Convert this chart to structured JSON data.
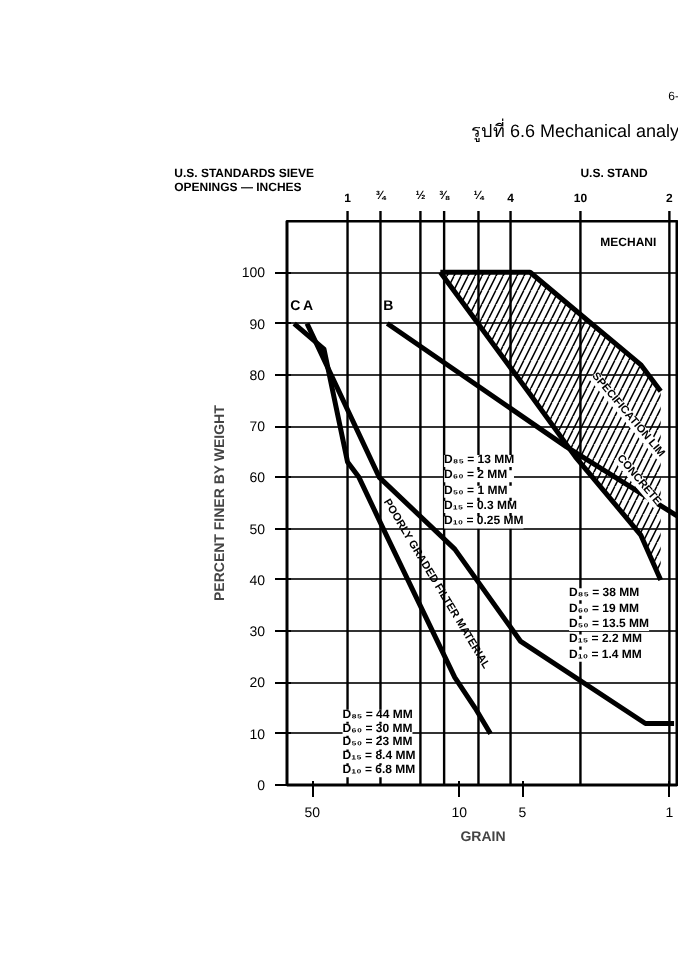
{
  "chart_data": {
    "type": "line",
    "title": "รูปที่ 6.6 Mechanical analy",
    "xlabel": "GRAIN",
    "ylabel": "PERCENT FINER BY WEIGHT",
    "log": "x",
    "xlim": [
      66,
      0.9
    ],
    "xticks": [
      50,
      10,
      5,
      1
    ],
    "ylim": [
      0,
      110
    ],
    "yticks": [
      0,
      10,
      20,
      30,
      40,
      50,
      60,
      70,
      80,
      90,
      100
    ],
    "grid": "y",
    "line_style": "solid",
    "ref_lines": [
      {
        "axis": "x",
        "value": 34
      },
      {
        "axis": "x",
        "value": 23.7
      },
      {
        "axis": "x",
        "value": 15.3
      },
      {
        "axis": "x",
        "value": 11.8
      },
      {
        "axis": "x",
        "value": 8.1
      },
      {
        "axis": "x",
        "value": 5.7
      },
      {
        "axis": "x",
        "value": 2.65
      },
      {
        "axis": "x",
        "value": 1.0
      }
    ],
    "series": [
      {
        "name": "C",
        "color": "#000000",
        "x": [
          61,
          44,
          34,
          30,
          23,
          10.5,
          8.4,
          7.1
        ],
        "values": [
          90,
          85,
          63,
          60,
          50,
          21,
          15,
          10
        ]
      },
      {
        "name": "A",
        "color": "#000000",
        "x": [
          53,
          24,
          10.5,
          5.1,
          1.3,
          0.95
        ],
        "values": [
          90,
          60,
          46,
          28,
          12,
          12
        ]
      },
      {
        "name": "B",
        "color": "#000000",
        "x": [
          22,
          3.1,
          0.92
        ],
        "values": [
          90,
          66,
          52.5
        ]
      },
      {
        "type": "line",
        "color": "#000000",
        "x": [
          12.3,
          4.6,
          2.8,
          1.37,
          1.1
        ],
        "values": [
          100,
          100,
          92.6,
          82,
          76.8
        ],
        "upper": [
          100,
          100,
          92.6,
          82,
          76.8
        ],
        "lower": [
          100,
          76.2,
          64,
          48.8,
          40
        ]
      },
      {
        "type": "line",
        "color": "#000000",
        "x": [
          12.3,
          4.6,
          2.8,
          1.37,
          1.1
        ],
        "values": [
          100,
          76.2,
          64,
          48.8,
          40
        ]
      }
    ],
    "annotations": [
      "6-",
      "U.S. STAND",
      "MECHANI",
      "SPECIFICATION LIM",
      "CONCRETE",
      "POORLY GRADED FILTER MATERIAL",
      "D₈₅ = 13 MM",
      "D₆₀ =   2 MM",
      "D₅₀ =   1 MM",
      "D₁₅ = 0.3 MM",
      "D₁₀ = 0.25 MM",
      "D₈₅ = 38 MM",
      "D₆₀ = 19 MM",
      "D₅₀ = 13.5 MM",
      "D₁₅ = 2.2 MM",
      "D₁₀ = 1.4 MM",
      "D₈₅ = 44 MM",
      "D₆₀ = 30 MM",
      "D₅₀ = 23 MM",
      "D₁₅ = 8.4 MM",
      "D₁₀ = 6.8 MM",
      "U.S. STANDARDS SIEVE",
      "OPENINGS — INCHES",
      "1",
      "¾",
      "½",
      "⅜",
      "¼",
      "4",
      "10",
      "2"
    ]
  }
}
